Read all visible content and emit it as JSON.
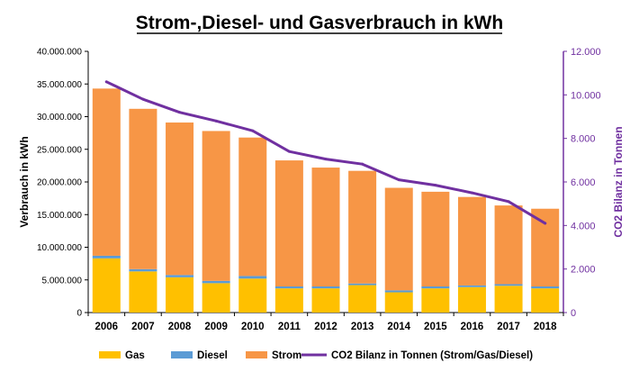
{
  "chart_data": {
    "type": "bar",
    "stacked": true,
    "title": "Strom-,Diesel- und Gasverbrauch in kWh",
    "categories": [
      "2006",
      "2007",
      "2008",
      "2009",
      "2010",
      "2011",
      "2012",
      "2013",
      "2014",
      "2015",
      "2016",
      "2017",
      "2018"
    ],
    "series": [
      {
        "name": "Gas",
        "color": "#ffc000",
        "values": [
          8300000,
          6300000,
          5400000,
          4500000,
          5200000,
          3700000,
          3700000,
          4200000,
          3100000,
          3700000,
          3900000,
          4100000,
          3700000
        ]
      },
      {
        "name": "Diesel",
        "color": "#5b9bd5",
        "values": [
          400000,
          350000,
          350000,
          350000,
          400000,
          300000,
          300000,
          250000,
          300000,
          300000,
          250000,
          250000,
          300000
        ]
      },
      {
        "name": "Strom",
        "color": "#f79646",
        "values": [
          25600000,
          24550000,
          23350000,
          22950000,
          21200000,
          19300000,
          18200000,
          17250000,
          15700000,
          14500000,
          13550000,
          12050000,
          11900000
        ]
      }
    ],
    "line_series": {
      "name": "CO2 Bilanz in Tonnen (Strom/Gas/Diesel)",
      "color": "#7030a0",
      "values": [
        10600,
        9800,
        9200,
        8800,
        8350,
        7400,
        7050,
        6820,
        6100,
        5850,
        5500,
        5100,
        4100
      ]
    },
    "ylabel": "Verbrauch in kWh",
    "ylabel_right": "CO2 Bilanz in Tonnen",
    "ylim": [
      0,
      40000000
    ],
    "ylim_right": [
      0,
      12000
    ],
    "yticks": [
      "0",
      "5.000.000",
      "10.000.000",
      "15.000.000",
      "20.000.000",
      "25.000.000",
      "30.000.000",
      "35.000.000",
      "40.000.000"
    ],
    "yticks_right": [
      "0",
      "2.000",
      "4.000",
      "6.000",
      "8.000",
      "10.000",
      "12.000"
    ],
    "grid": false,
    "legend_position": "bottom"
  }
}
